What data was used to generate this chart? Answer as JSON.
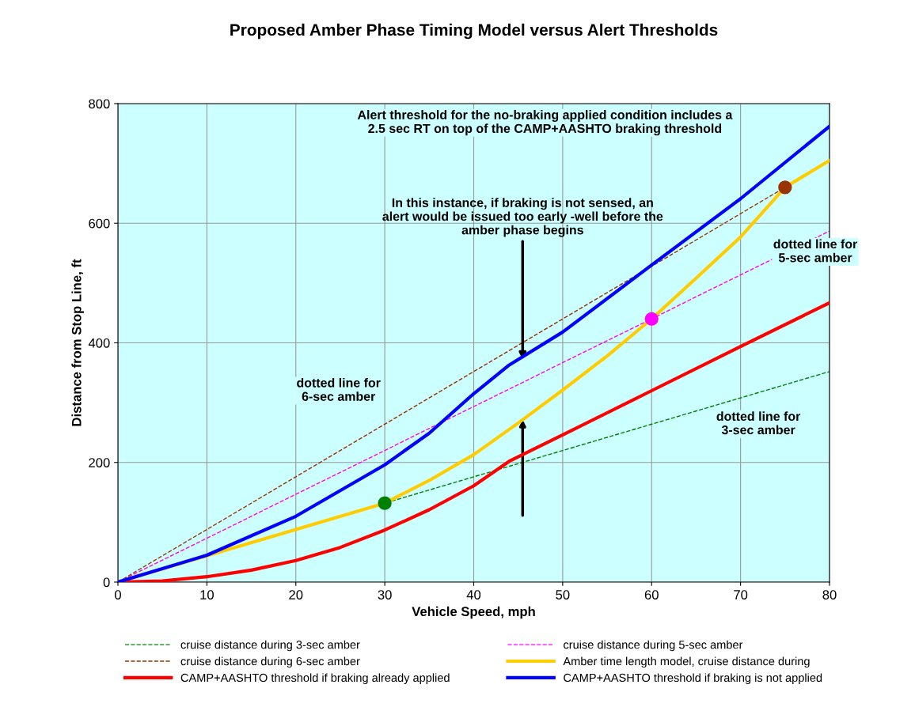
{
  "chart_data": {
    "type": "line",
    "title": "Proposed Amber Phase Timing Model versus Alert Thresholds",
    "xlabel": "Vehicle Speed, mph",
    "ylabel": "Distance from Stop Line, ft",
    "xlim": [
      0,
      80
    ],
    "xticks": [
      0,
      10,
      20,
      30,
      40,
      50,
      60,
      70,
      80
    ],
    "ylim": [
      0,
      800
    ],
    "yticks": [
      0,
      200,
      400,
      600,
      800
    ],
    "grid": true,
    "legend": "bottom",
    "series": [
      {
        "name": "cruise distance during 3-sec amber",
        "color": "#008000",
        "line_style": "dashed",
        "x": [
          0,
          80
        ],
        "values": [
          0,
          352
        ]
      },
      {
        "name": "cruise distance during 5-sec amber",
        "color": "#ff00ff",
        "line_style": "dashed",
        "x": [
          0,
          80
        ],
        "values": [
          0,
          587
        ]
      },
      {
        "name": "cruise distance during 6-sec amber",
        "color": "#993300",
        "line_style": "dashed",
        "x": [
          0,
          75
        ],
        "values": [
          0,
          660
        ]
      },
      {
        "name": "Amber time length model, cruise distance during",
        "color": "#ffcc00",
        "line_style": "solid",
        "x": [
          0,
          10,
          20,
          30,
          35,
          40,
          45,
          50,
          55,
          60,
          65,
          70,
          75,
          80
        ],
        "values": [
          0,
          44,
          88,
          132,
          170,
          213,
          266,
          321,
          378,
          440,
          508,
          577,
          660,
          705
        ]
      },
      {
        "name": "CAMP+AASHTO threshold if braking already applied",
        "color": "#ff0000",
        "line_style": "solid",
        "x": [
          0,
          5,
          10,
          15,
          20,
          25,
          30,
          35,
          40,
          44,
          50,
          60,
          70,
          80
        ],
        "values": [
          0,
          2,
          9,
          20,
          36,
          58,
          87,
          121,
          161,
          202,
          246,
          320,
          394,
          467
        ]
      },
      {
        "name": "CAMP+AASHTO threshold if braking is not applied",
        "color": "#0000ff",
        "line_style": "solid",
        "x": [
          0,
          10,
          20,
          30,
          35,
          40,
          44,
          50,
          60,
          70,
          80
        ],
        "values": [
          0,
          45,
          110,
          196,
          249,
          315,
          363,
          418,
          530,
          641,
          762
        ]
      },
      {
        "type": "scatter",
        "color": "#008000",
        "x": [
          30
        ],
        "values": [
          132
        ]
      },
      {
        "type": "scatter",
        "color": "#ff00ff",
        "x": [
          60
        ],
        "values": [
          440
        ]
      },
      {
        "type": "scatter",
        "color": "#993300",
        "x": [
          75
        ],
        "values": [
          660
        ]
      }
    ],
    "annotations": [
      "Alert threshold for the no-braking applied condition includes a\n2.5 sec RT on top of the CAMP+AASHTO braking threshold",
      {
        "text": "In this instance, if braking is not sensed, an\nalert would be issued too early -well before the\namber phase begins",
        "x": 45.5,
        "y": 372
      },
      "dotted line for\n6-sec amber",
      "dotted line for\n5-sec amber",
      "dotted line for\n3-sec amber"
    ]
  }
}
